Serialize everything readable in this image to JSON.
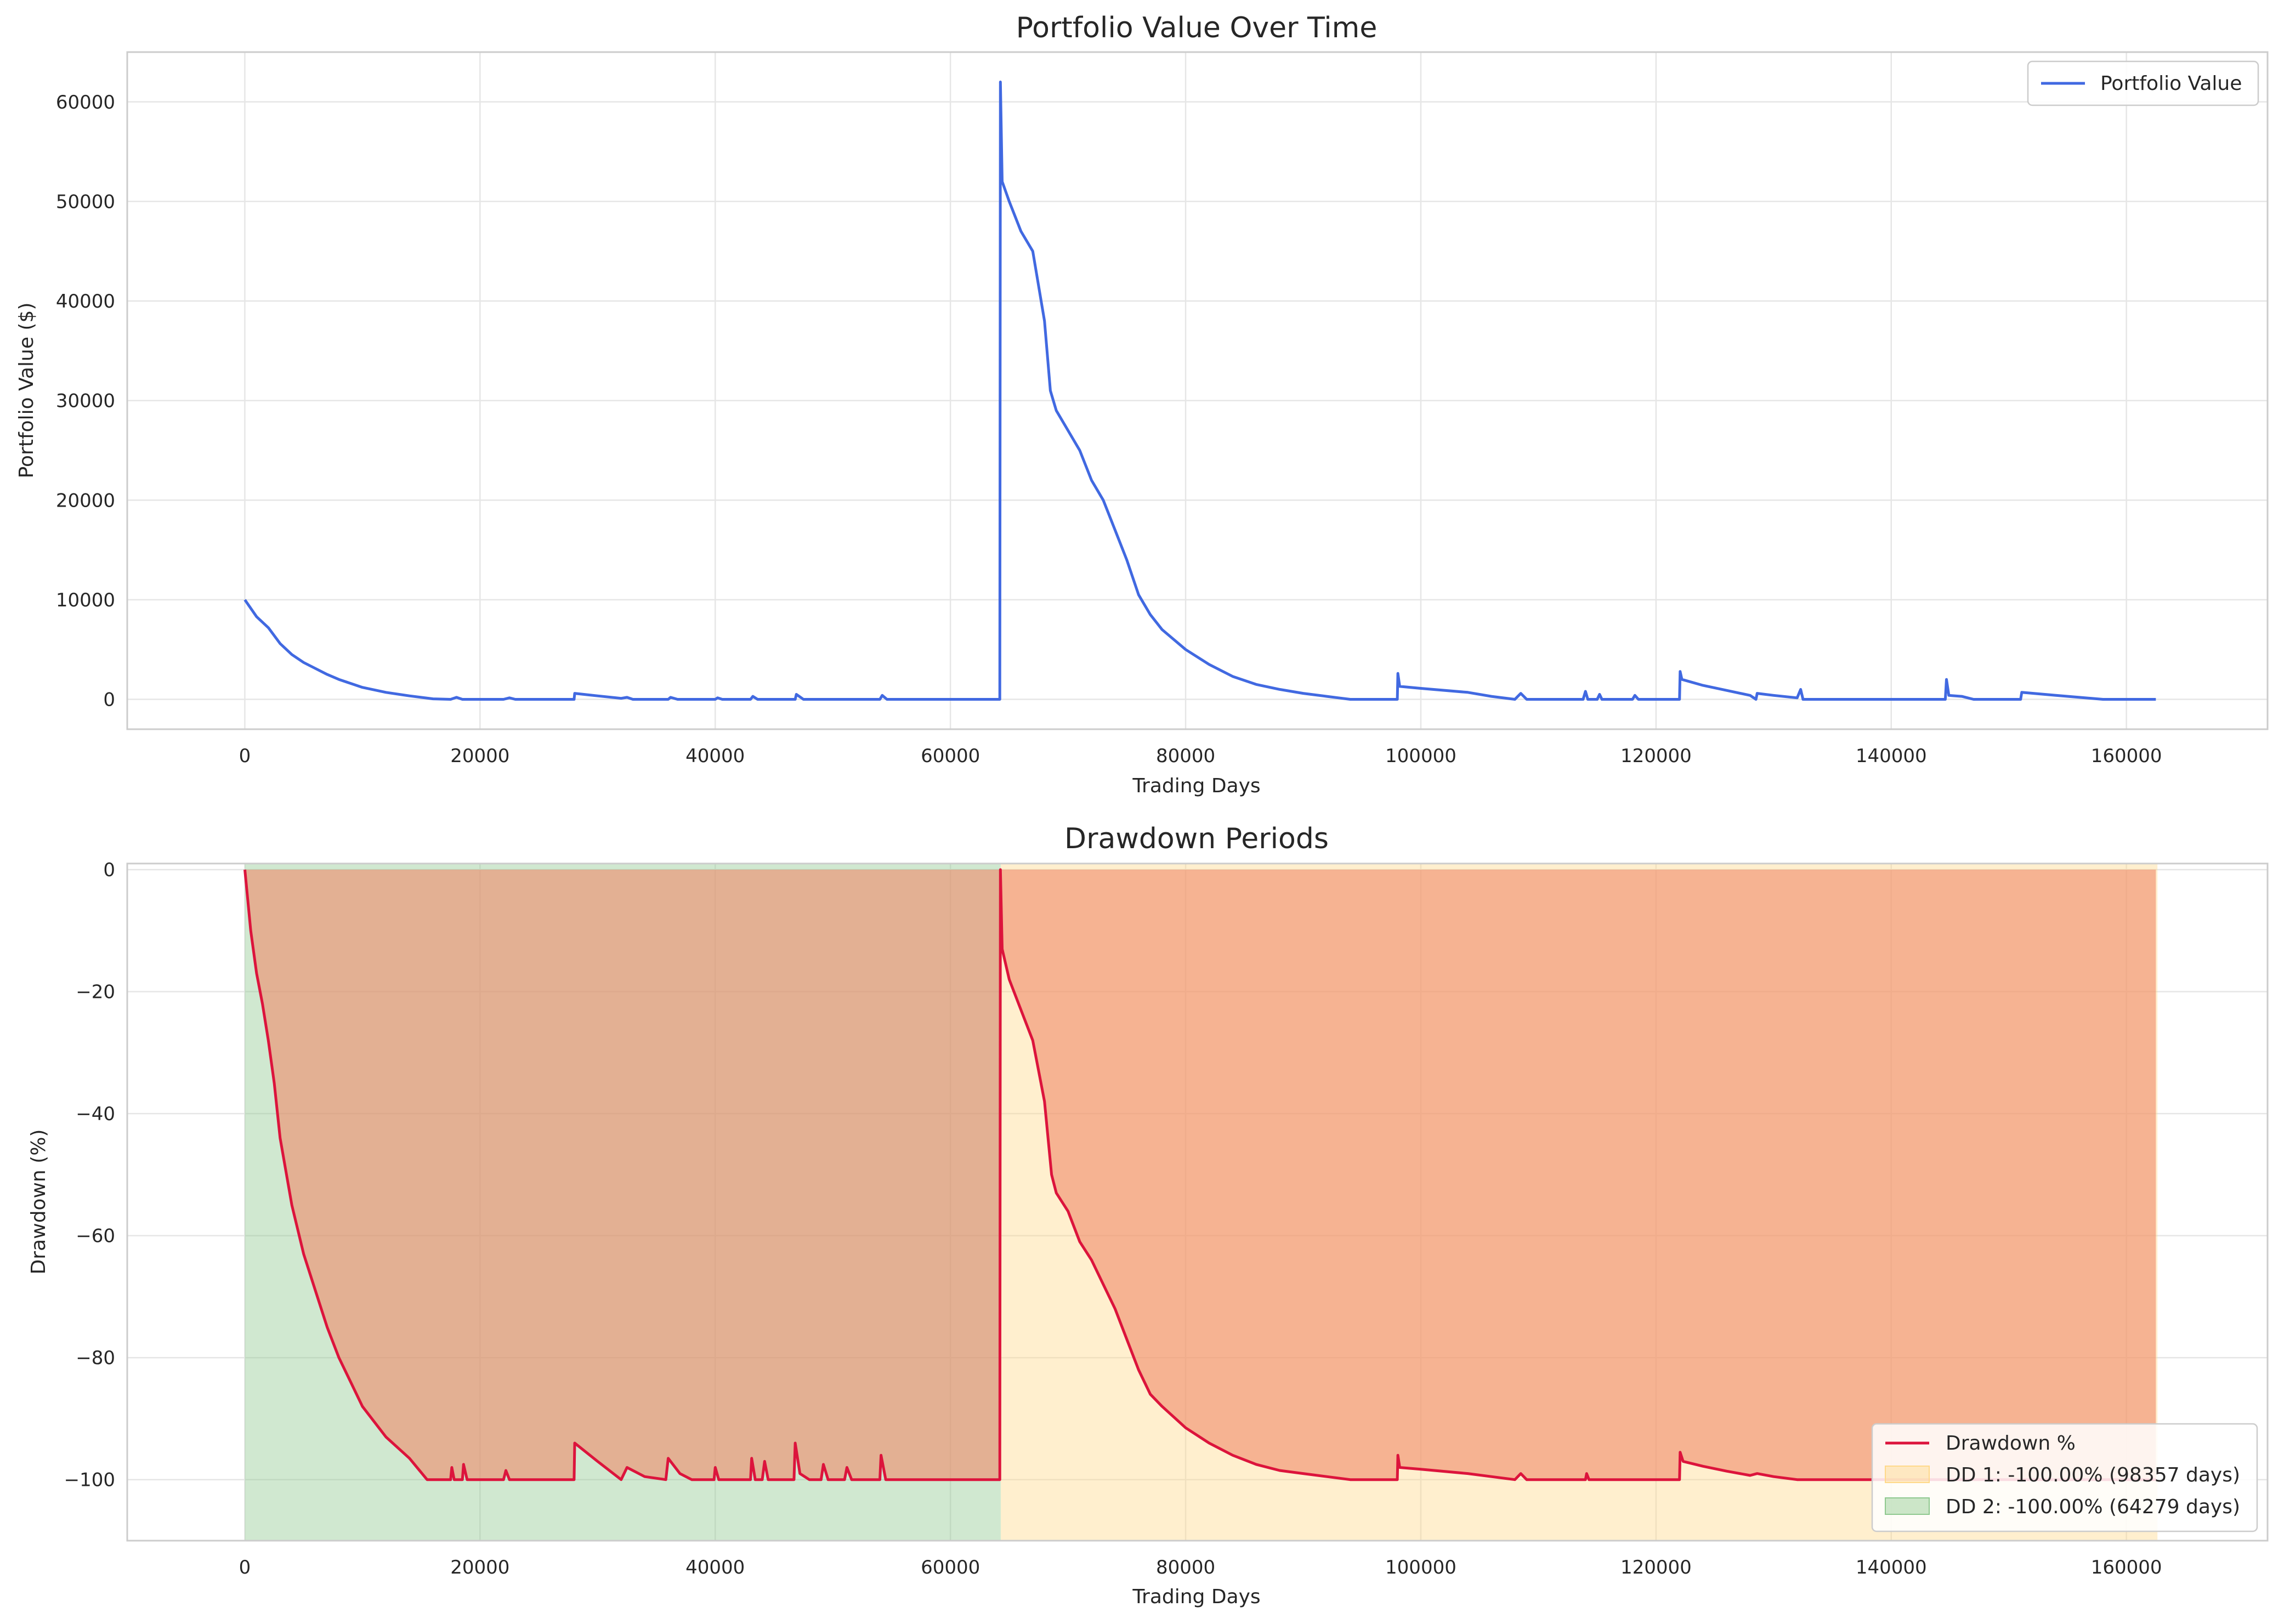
{
  "chart_data": [
    {
      "type": "line",
      "title": "Portfolio Value Over Time",
      "xlabel": "Trading Days",
      "ylabel": "Portfolio Value ($)",
      "xlim": [
        -10000,
        172000
      ],
      "ylim": [
        -3000,
        65000
      ],
      "xticks": [
        0,
        20000,
        40000,
        60000,
        80000,
        100000,
        120000,
        140000,
        160000
      ],
      "yticks": [
        0,
        10000,
        20000,
        30000,
        40000,
        50000,
        60000
      ],
      "grid": true,
      "legend_position": "top-right",
      "series": [
        {
          "name": "Portfolio Value",
          "color": "#4169e1",
          "points": [
            [
              0,
              10000
            ],
            [
              1000,
              8300
            ],
            [
              2000,
              7200
            ],
            [
              3000,
              5600
            ],
            [
              4000,
              4500
            ],
            [
              5000,
              3700
            ],
            [
              6000,
              3100
            ],
            [
              7000,
              2500
            ],
            [
              8000,
              2000
            ],
            [
              9000,
              1600
            ],
            [
              10000,
              1200
            ],
            [
              12000,
              700
            ],
            [
              14000,
              350
            ],
            [
              16000,
              50
            ],
            [
              17500,
              0
            ],
            [
              18000,
              200
            ],
            [
              18500,
              0
            ],
            [
              22000,
              0
            ],
            [
              22500,
              150
            ],
            [
              23000,
              0
            ],
            [
              28000,
              0
            ],
            [
              28050,
              600
            ],
            [
              30000,
              350
            ],
            [
              32000,
              100
            ],
            [
              32500,
              200
            ],
            [
              33000,
              0
            ],
            [
              36000,
              0
            ],
            [
              36200,
              200
            ],
            [
              36800,
              0
            ],
            [
              40000,
              0
            ],
            [
              40200,
              150
            ],
            [
              40600,
              0
            ],
            [
              43000,
              0
            ],
            [
              43200,
              300
            ],
            [
              43600,
              0
            ],
            [
              46800,
              0
            ],
            [
              46900,
              500
            ],
            [
              47500,
              0
            ],
            [
              54000,
              0
            ],
            [
              54200,
              400
            ],
            [
              54600,
              0
            ],
            [
              64200,
              0
            ],
            [
              64250,
              62000
            ],
            [
              64400,
              52000
            ],
            [
              65000,
              50000
            ],
            [
              66000,
              47000
            ],
            [
              67000,
              45000
            ],
            [
              68000,
              38000
            ],
            [
              68500,
              31000
            ],
            [
              69000,
              29000
            ],
            [
              70000,
              27000
            ],
            [
              71000,
              25000
            ],
            [
              72000,
              22000
            ],
            [
              73000,
              20000
            ],
            [
              74000,
              17000
            ],
            [
              75000,
              14000
            ],
            [
              76000,
              10500
            ],
            [
              77000,
              8500
            ],
            [
              78000,
              7000
            ],
            [
              80000,
              5000
            ],
            [
              82000,
              3500
            ],
            [
              84000,
              2300
            ],
            [
              86000,
              1500
            ],
            [
              88000,
              1000
            ],
            [
              90000,
              600
            ],
            [
              92000,
              300
            ],
            [
              93000,
              150
            ],
            [
              94000,
              0
            ],
            [
              98000,
              0
            ],
            [
              98050,
              2600
            ],
            [
              98200,
              1300
            ],
            [
              100000,
              1100
            ],
            [
              104000,
              700
            ],
            [
              106000,
              300
            ],
            [
              108000,
              0
            ],
            [
              108500,
              600
            ],
            [
              109000,
              0
            ],
            [
              113800,
              0
            ],
            [
              114000,
              800
            ],
            [
              114200,
              0
            ],
            [
              115000,
              0
            ],
            [
              115200,
              500
            ],
            [
              115400,
              0
            ],
            [
              118000,
              0
            ],
            [
              118200,
              400
            ],
            [
              118500,
              0
            ],
            [
              122000,
              0
            ],
            [
              122050,
              2800
            ],
            [
              122200,
              2000
            ],
            [
              124000,
              1400
            ],
            [
              126000,
              900
            ],
            [
              128000,
              400
            ],
            [
              128500,
              0
            ],
            [
              128600,
              600
            ],
            [
              130000,
              400
            ],
            [
              132000,
              150
            ],
            [
              132300,
              1000
            ],
            [
              132500,
              0
            ],
            [
              144600,
              0
            ],
            [
              144700,
              2000
            ],
            [
              144900,
              400
            ],
            [
              146000,
              300
            ],
            [
              147000,
              0
            ],
            [
              151000,
              0
            ],
            [
              151100,
              700
            ],
            [
              154000,
              400
            ],
            [
              156000,
              200
            ],
            [
              158000,
              0
            ],
            [
              162500,
              0
            ]
          ]
        }
      ]
    },
    {
      "type": "area",
      "title": "Drawdown Periods",
      "xlabel": "Trading Days",
      "ylabel": "Drawdown (%)",
      "xlim": [
        -10000,
        172000
      ],
      "ylim": [
        -110,
        1
      ],
      "xticks": [
        0,
        20000,
        40000,
        60000,
        80000,
        100000,
        120000,
        140000,
        160000
      ],
      "yticks": [
        0,
        -20,
        -40,
        -60,
        -80,
        -100
      ],
      "grid": true,
      "legend_position": "bottom-right",
      "drawdown_fill_color": "#f08a6a",
      "shaded_periods": [
        {
          "name": "DD 1: -100.00% (98357 days)",
          "start": 64280,
          "end": 162637,
          "depth": -100,
          "color": "#ffd98a"
        },
        {
          "name": "DD 2: -100.00% (64279 days)",
          "start": 0,
          "end": 64279,
          "depth": -100,
          "color": "#8fc98f"
        }
      ],
      "series": [
        {
          "name": "Drawdown %",
          "color": "#dc143c",
          "points": [
            [
              0,
              0
            ],
            [
              500,
              -10
            ],
            [
              1000,
              -17
            ],
            [
              1500,
              -22
            ],
            [
              2000,
              -28
            ],
            [
              2500,
              -35
            ],
            [
              3000,
              -44
            ],
            [
              4000,
              -55
            ],
            [
              5000,
              -63
            ],
            [
              6000,
              -69
            ],
            [
              7000,
              -75
            ],
            [
              8000,
              -80
            ],
            [
              9000,
              -84
            ],
            [
              10000,
              -88
            ],
            [
              12000,
              -93
            ],
            [
              14000,
              -96.5
            ],
            [
              15500,
              -100
            ],
            [
              17500,
              -100
            ],
            [
              17600,
              -98
            ],
            [
              17800,
              -100
            ],
            [
              18500,
              -100
            ],
            [
              18600,
              -97.5
            ],
            [
              18900,
              -100
            ],
            [
              22000,
              -100
            ],
            [
              22200,
              -98.5
            ],
            [
              22500,
              -100
            ],
            [
              28000,
              -100
            ],
            [
              28050,
              -94
            ],
            [
              30000,
              -97
            ],
            [
              32000,
              -100
            ],
            [
              32500,
              -98
            ],
            [
              34000,
              -99.5
            ],
            [
              35800,
              -100
            ],
            [
              36000,
              -96.5
            ],
            [
              37000,
              -99
            ],
            [
              38000,
              -100
            ],
            [
              39900,
              -100
            ],
            [
              40000,
              -98
            ],
            [
              40300,
              -100
            ],
            [
              43000,
              -100
            ],
            [
              43100,
              -96.5
            ],
            [
              43400,
              -100
            ],
            [
              44000,
              -100
            ],
            [
              44200,
              -97
            ],
            [
              44500,
              -100
            ],
            [
              46700,
              -100
            ],
            [
              46800,
              -94
            ],
            [
              47200,
              -99
            ],
            [
              48000,
              -100
            ],
            [
              49000,
              -100
            ],
            [
              49200,
              -97.5
            ],
            [
              49600,
              -100
            ],
            [
              51000,
              -100
            ],
            [
              51200,
              -98
            ],
            [
              51600,
              -100
            ],
            [
              54000,
              -100
            ],
            [
              54100,
              -96
            ],
            [
              54500,
              -100
            ],
            [
              64200,
              -100
            ],
            [
              64250,
              0
            ],
            [
              64400,
              -13
            ],
            [
              65000,
              -18
            ],
            [
              66000,
              -23
            ],
            [
              67000,
              -28
            ],
            [
              68000,
              -38
            ],
            [
              68600,
              -50
            ],
            [
              69000,
              -53
            ],
            [
              70000,
              -56
            ],
            [
              71000,
              -61
            ],
            [
              72000,
              -64
            ],
            [
              73000,
              -68
            ],
            [
              74000,
              -72
            ],
            [
              75000,
              -77
            ],
            [
              76000,
              -82
            ],
            [
              77000,
              -86
            ],
            [
              78000,
              -88
            ],
            [
              80000,
              -91.5
            ],
            [
              82000,
              -94
            ],
            [
              84000,
              -96
            ],
            [
              86000,
              -97.5
            ],
            [
              88000,
              -98.5
            ],
            [
              90000,
              -99
            ],
            [
              92000,
              -99.5
            ],
            [
              94000,
              -100
            ],
            [
              98000,
              -100
            ],
            [
              98050,
              -96
            ],
            [
              98200,
              -98
            ],
            [
              100000,
              -98.3
            ],
            [
              104000,
              -99
            ],
            [
              106000,
              -99.5
            ],
            [
              108000,
              -100
            ],
            [
              108500,
              -99
            ],
            [
              109000,
              -100
            ],
            [
              114000,
              -100
            ],
            [
              114100,
              -99
            ],
            [
              114300,
              -100
            ],
            [
              122000,
              -100
            ],
            [
              122050,
              -95.5
            ],
            [
              122300,
              -97
            ],
            [
              124000,
              -97.8
            ],
            [
              126000,
              -98.6
            ],
            [
              128000,
              -99.3
            ],
            [
              128600,
              -99
            ],
            [
              130000,
              -99.5
            ],
            [
              132000,
              -100
            ],
            [
              162500,
              -100
            ]
          ]
        }
      ]
    }
  ]
}
